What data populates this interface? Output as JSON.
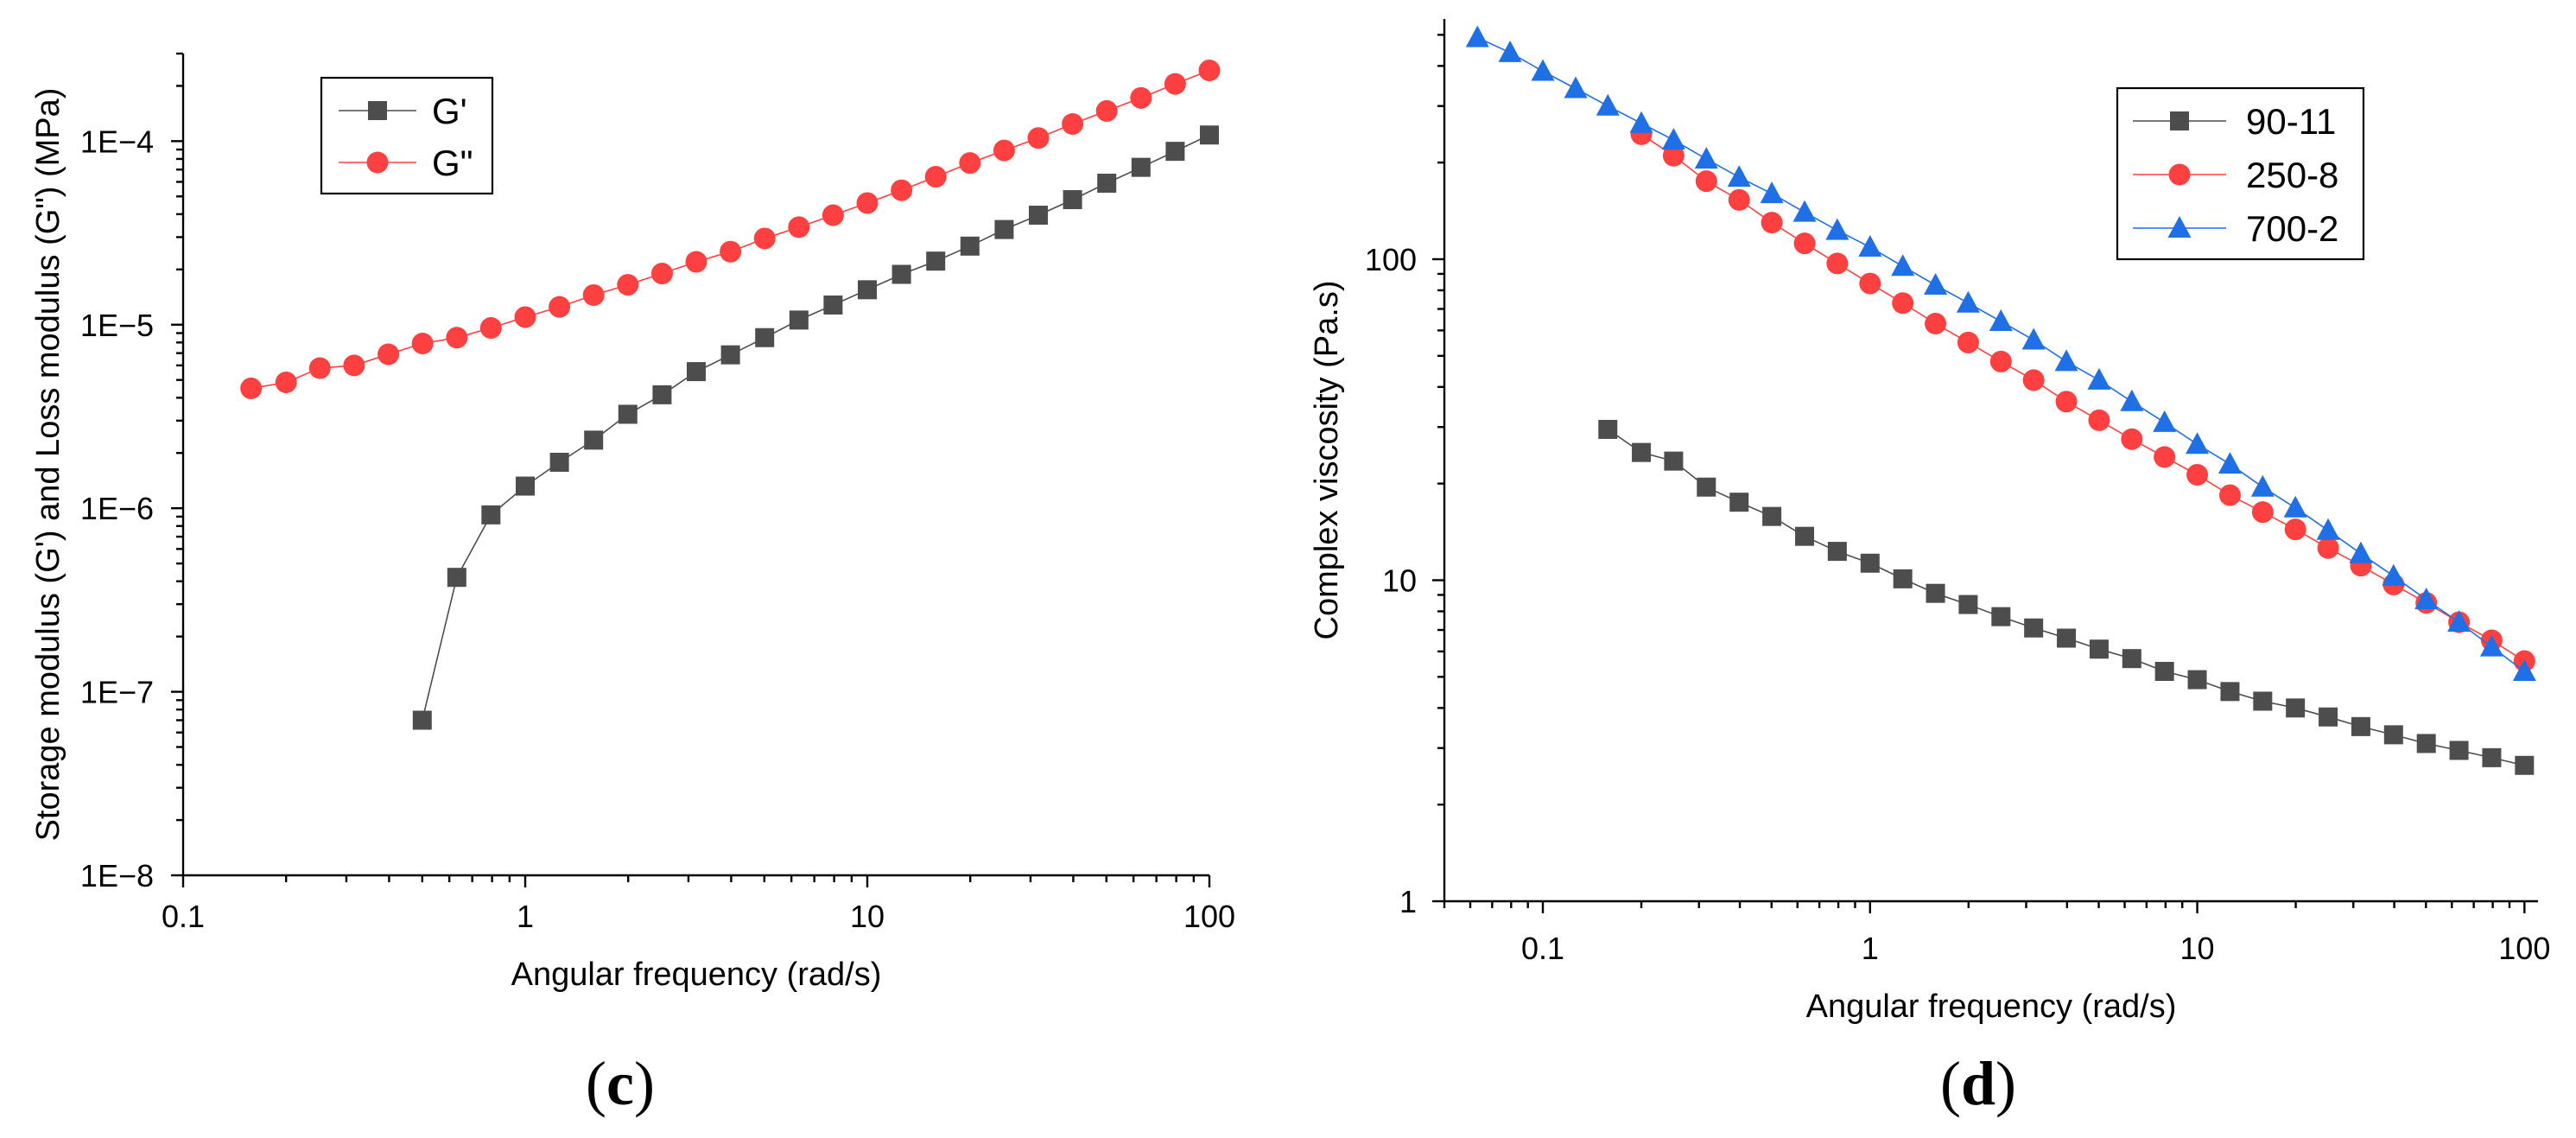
{
  "chart_data": [
    {
      "type": "scatter",
      "panel_label": {
        "open": "(",
        "letter": "c",
        "close": ")"
      },
      "xlabel": "Angular frequency (rad/s)",
      "ylabel": "Storage modulus (G') and Loss modulus (G\") (MPa)",
      "xscale": "log",
      "yscale": "log",
      "xlim": [
        0.1,
        100
      ],
      "ylim": [
        1e-08,
        0.0003
      ],
      "xticks": [
        0.1,
        1,
        10,
        100
      ],
      "xtick_labels": [
        "0.1",
        "1",
        "10",
        "100"
      ],
      "yticks": [
        1e-08,
        1e-07,
        1e-06,
        1e-05,
        0.0001
      ],
      "ytick_labels": [
        "1E−8",
        "1E−7",
        "1E−6",
        "1E−5",
        "1E−4"
      ],
      "legend_position": "top-left",
      "series": [
        {
          "name": "G'",
          "marker": "square",
          "color": "#4d4d4d",
          "x": [
            0.5,
            0.631,
            0.794,
            1.0,
            1.259,
            1.585,
            1.995,
            2.512,
            3.162,
            3.981,
            5.012,
            6.31,
            7.943,
            10.0,
            12.59,
            15.85,
            19.95,
            25.12,
            31.62,
            39.81,
            50.12,
            63.1,
            79.43,
            100.0
          ],
          "y": [
            7e-08,
            4.2e-07,
            9.2e-07,
            1.32e-06,
            1.78e-06,
            2.35e-06,
            3.25e-06,
            4.15e-06,
            5.55e-06,
            6.85e-06,
            8.5e-06,
            1.06e-05,
            1.28e-05,
            1.55e-05,
            1.88e-05,
            2.22e-05,
            2.68e-05,
            3.3e-05,
            3.95e-05,
            4.8e-05,
            5.9e-05,
            7.2e-05,
            8.8e-05,
            0.000108
          ]
        },
        {
          "name": "G\"",
          "marker": "circle",
          "color": "#ff4040",
          "x": [
            0.158,
            0.2,
            0.251,
            0.316,
            0.398,
            0.501,
            0.631,
            0.794,
            1.0,
            1.259,
            1.585,
            1.995,
            2.512,
            3.162,
            3.981,
            5.012,
            6.31,
            7.943,
            10.0,
            12.59,
            15.85,
            19.95,
            25.12,
            31.62,
            39.81,
            50.12,
            63.1,
            79.43,
            100.0
          ],
          "y": [
            4.5e-06,
            4.85e-06,
            5.8e-06,
            6e-06,
            6.9e-06,
            7.9e-06,
            8.5e-06,
            9.6e-06,
            1.1e-05,
            1.25e-05,
            1.45e-05,
            1.65e-05,
            1.9e-05,
            2.2e-05,
            2.5e-05,
            2.95e-05,
            3.4e-05,
            3.95e-05,
            4.6e-05,
            5.4e-05,
            6.4e-05,
            7.6e-05,
            8.9e-05,
            0.000104,
            0.000124,
            0.000146,
            0.000172,
            0.000205,
            0.000243
          ]
        }
      ]
    },
    {
      "type": "scatter",
      "panel_label": {
        "open": "(",
        "letter": "d",
        "close": ")"
      },
      "xlabel": "Angular frequency (rad/s)",
      "ylabel": "Complex viscosity (Pa.s)",
      "xscale": "log",
      "yscale": "log",
      "xlim": [
        0.05,
        110
      ],
      "ylim": [
        1,
        560
      ],
      "xticks": [
        0.1,
        1,
        10,
        100
      ],
      "xtick_labels": [
        "0.1",
        "1",
        "10",
        "100"
      ],
      "yticks": [
        1,
        10,
        100
      ],
      "ytick_labels": [
        "1",
        "10",
        "100"
      ],
      "legend_position": "top-right",
      "series": [
        {
          "name": "90-11",
          "marker": "square",
          "color": "#4d4d4d",
          "x": [
            0.158,
            0.2,
            0.251,
            0.316,
            0.398,
            0.501,
            0.631,
            0.794,
            1.0,
            1.259,
            1.585,
            1.995,
            2.512,
            3.162,
            3.981,
            5.012,
            6.31,
            7.943,
            10.0,
            12.59,
            15.85,
            19.95,
            25.12,
            31.62,
            39.81,
            50.12,
            63.1,
            79.43,
            100.0
          ],
          "y": [
            29.5,
            25.0,
            23.5,
            19.5,
            17.5,
            15.8,
            13.7,
            12.3,
            11.3,
            10.1,
            9.1,
            8.4,
            7.7,
            7.1,
            6.6,
            6.1,
            5.7,
            5.2,
            4.9,
            4.5,
            4.2,
            4.0,
            3.75,
            3.5,
            3.3,
            3.1,
            2.95,
            2.8,
            2.65
          ]
        },
        {
          "name": "250-8",
          "marker": "circle",
          "color": "#ff4040",
          "x": [
            0.2,
            0.251,
            0.316,
            0.398,
            0.501,
            0.631,
            0.794,
            1.0,
            1.259,
            1.585,
            1.995,
            2.512,
            3.162,
            3.981,
            5.012,
            6.31,
            7.943,
            10.0,
            12.59,
            15.85,
            19.95,
            25.12,
            31.62,
            39.81,
            50.12,
            63.1,
            79.43,
            100.0
          ],
          "y": [
            245,
            210,
            175,
            153,
            130,
            112,
            97,
            84,
            73,
            63,
            55,
            48,
            42,
            36,
            31.5,
            27.5,
            24.2,
            21.3,
            18.4,
            16.3,
            14.4,
            12.6,
            11.1,
            9.7,
            8.5,
            7.4,
            6.5,
            5.6
          ]
        },
        {
          "name": "700-2",
          "marker": "triangle",
          "color": "#1f6fe6",
          "x": [
            0.0631,
            0.0794,
            0.1,
            0.126,
            0.158,
            0.2,
            0.251,
            0.316,
            0.398,
            0.501,
            0.631,
            0.794,
            1.0,
            1.259,
            1.585,
            1.995,
            2.512,
            3.162,
            3.981,
            5.012,
            6.31,
            7.943,
            10.0,
            12.59,
            15.85,
            19.95,
            25.12,
            31.62,
            39.81,
            50.12,
            63.1,
            79.43,
            100.0
          ],
          "y": [
            490,
            440,
            385,
            340,
            300,
            265,
            235,
            205,
            180,
            160,
            140,
            123,
            109,
            95,
            83,
            73,
            64,
            56,
            48,
            42,
            36,
            31,
            26.5,
            23,
            19.5,
            16.8,
            14.3,
            12.1,
            10.3,
            8.7,
            7.4,
            6.2,
            5.2
          ]
        }
      ]
    }
  ]
}
